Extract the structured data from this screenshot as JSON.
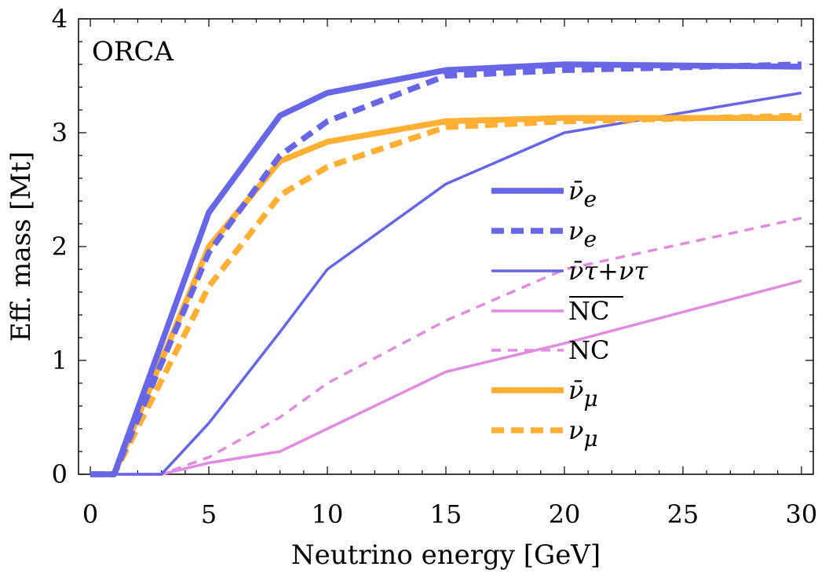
{
  "chart_data": {
    "type": "line",
    "title": "ORCA",
    "xlabel": "Neutrino energy [GeV]",
    "ylabel": "Eff. mass [Mt]",
    "xlim": [
      -0.5,
      30.5
    ],
    "ylim": [
      0,
      4
    ],
    "xticks": [
      "0",
      "5",
      "10",
      "15",
      "20",
      "25",
      "30"
    ],
    "yticks": [
      "0",
      "1",
      "2",
      "3",
      "4"
    ],
    "legend_position": "center-right",
    "series": [
      {
        "name": "ν̄e",
        "label_main": "ν̄",
        "label_sub": "e",
        "color": "#6666e6",
        "style": "solid",
        "weight": "thick",
        "x": [
          0,
          1,
          5,
          8,
          10,
          15,
          20,
          30
        ],
        "y": [
          0,
          0,
          2.3,
          3.15,
          3.35,
          3.55,
          3.6,
          3.58
        ]
      },
      {
        "name": "νe",
        "label_main": "ν",
        "label_sub": "e",
        "color": "#6666e6",
        "style": "dashed",
        "weight": "thick",
        "x": [
          0,
          1,
          5,
          8,
          10,
          15,
          20,
          30
        ],
        "y": [
          0,
          0,
          1.95,
          2.8,
          3.1,
          3.5,
          3.55,
          3.6
        ]
      },
      {
        "name": "ν̄τ+ντ",
        "label_main": "ν̄τ+ντ",
        "label_sub": "",
        "color": "#6666e6",
        "style": "solid",
        "weight": "thin",
        "x": [
          0,
          3,
          5,
          8,
          10,
          15,
          20,
          30
        ],
        "y": [
          0,
          0,
          0.45,
          1.25,
          1.8,
          2.55,
          3.0,
          3.35
        ]
      },
      {
        "name": "NC (anti)",
        "label_main": "NC",
        "label_sub": "",
        "overline": true,
        "color": "#e08ce0",
        "style": "solid",
        "weight": "thin",
        "x": [
          0,
          3,
          5,
          8,
          10,
          15,
          20,
          30
        ],
        "y": [
          0,
          0,
          0.1,
          0.2,
          0.4,
          0.9,
          1.15,
          1.7
        ]
      },
      {
        "name": "NC",
        "label_main": "NC",
        "label_sub": "",
        "color": "#e08ce0",
        "style": "dashed",
        "weight": "thin",
        "x": [
          0,
          3,
          5,
          8,
          10,
          15,
          20,
          30
        ],
        "y": [
          0,
          0,
          0.15,
          0.5,
          0.8,
          1.35,
          1.8,
          2.25
        ]
      },
      {
        "name": "ν̄μ",
        "label_main": "ν̄",
        "label_sub": "μ",
        "color": "#ffb033",
        "style": "solid",
        "weight": "thick",
        "x": [
          0,
          1,
          5,
          8,
          10,
          15,
          20,
          30
        ],
        "y": [
          0,
          0,
          2.0,
          2.75,
          2.92,
          3.1,
          3.13,
          3.13
        ]
      },
      {
        "name": "νμ",
        "label_main": "ν",
        "label_sub": "μ",
        "color": "#ffb033",
        "style": "dashed",
        "weight": "thick",
        "x": [
          0,
          1,
          5,
          8,
          10,
          15,
          20,
          30
        ],
        "y": [
          0,
          0,
          1.65,
          2.45,
          2.7,
          3.05,
          3.1,
          3.15
        ]
      }
    ]
  }
}
